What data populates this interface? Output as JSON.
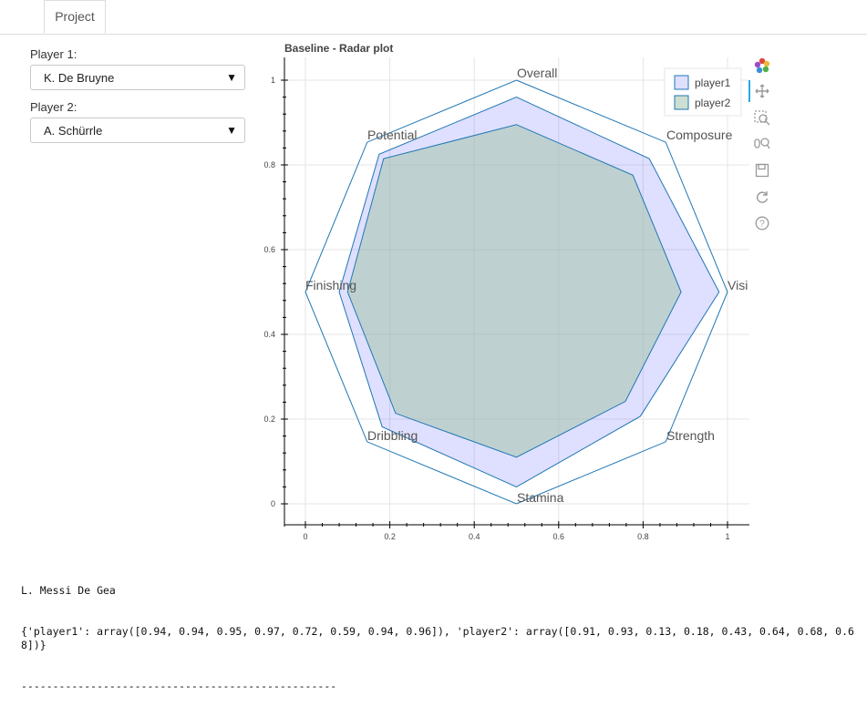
{
  "tabs": [
    {
      "label": "Project"
    }
  ],
  "player1": {
    "label": "Player 1:",
    "value": "K. De Bruyne"
  },
  "player2": {
    "label": "Player 2:",
    "value": "A. Schürrle"
  },
  "toolbar": {
    "icons": [
      "bokeh-logo-icon",
      "pan-icon",
      "box-zoom-icon",
      "wheel-zoom-icon",
      "save-icon",
      "reset-icon",
      "help-icon"
    ]
  },
  "chart_data": {
    "type": "radar",
    "title": "Baseline - Radar plot",
    "xlim": [
      -0.04,
      1.04
    ],
    "ylim": [
      -0.04,
      1.04
    ],
    "x_ticks": [
      "0",
      "0.2",
      "0.4",
      "0.6",
      "0.8",
      "1"
    ],
    "y_ticks": [
      "0",
      "0.2",
      "0.4",
      "0.6",
      "0.8",
      "1"
    ],
    "grid": true,
    "legend_position": "top-right",
    "center": [
      0.5,
      0.5
    ],
    "radius": 0.5,
    "axes_labels": [
      "Overall",
      "Composure",
      "Visi",
      "Strength",
      "Stamina",
      "Dribbling",
      "Finishing",
      "Potential"
    ],
    "series": [
      {
        "name": "player1",
        "color": "#0000ff",
        "fill": "rgba(40,40,255,0.15)",
        "values": [
          0.92,
          0.89,
          0.96,
          0.83,
          0.92,
          0.9,
          0.84,
          0.92
        ]
      },
      {
        "name": "player2",
        "color": "#1f77b4",
        "fill": "rgba(163,196,170,0.55)",
        "values": [
          0.79,
          0.78,
          0.78,
          0.73,
          0.78,
          0.81,
          0.8,
          0.89
        ]
      }
    ]
  },
  "console": {
    "line1": "L. Messi De Gea",
    "line2": "{'player1': array([0.94, 0.94, 0.95, 0.97, 0.72, 0.59, 0.94, 0.96]), 'player2': array([0.91, 0.93, 0.13, 0.18, 0.43, 0.64, 0.68, 0.68])}",
    "line3": "--------------------------------------------------"
  }
}
